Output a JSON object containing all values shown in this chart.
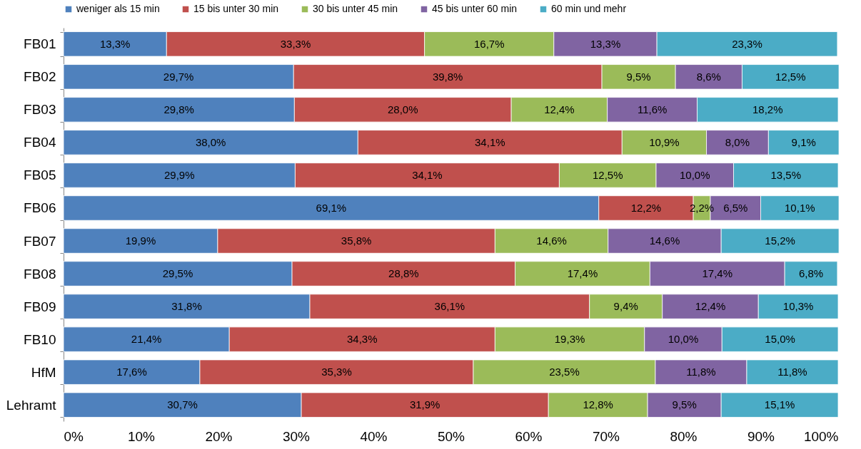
{
  "chart_data": {
    "type": "bar",
    "orientation": "horizontal",
    "stacked": true,
    "legend": "top",
    "grid": false,
    "categories": [
      "FB01",
      "FB02",
      "FB03",
      "FB04",
      "FB05",
      "FB06",
      "FB07",
      "FB08",
      "FB09",
      "FB10",
      "HfM",
      "Lehramt"
    ],
    "xlim": [
      0,
      100
    ],
    "xticks": [
      {
        "value": 0,
        "label": "0%"
      },
      {
        "value": 10,
        "label": "10%"
      },
      {
        "value": 20,
        "label": "20%"
      },
      {
        "value": 30,
        "label": "30%"
      },
      {
        "value": 40,
        "label": "40%"
      },
      {
        "value": 50,
        "label": "50%"
      },
      {
        "value": 60,
        "label": "60%"
      },
      {
        "value": 70,
        "label": "70%"
      },
      {
        "value": 80,
        "label": "80%"
      },
      {
        "value": 90,
        "label": "90%"
      },
      {
        "value": 100,
        "label": "100%"
      }
    ],
    "series": [
      {
        "name": "weniger als 15 min",
        "color": "#4f81bd",
        "values": [
          13.3,
          29.7,
          29.8,
          38.0,
          29.9,
          69.1,
          19.9,
          29.5,
          31.8,
          21.4,
          17.6,
          30.7
        ],
        "value_labels": [
          "13,3%",
          "29,7%",
          "29,8%",
          "38,0%",
          "29,9%",
          "69,1%",
          "19,9%",
          "29,5%",
          "31,8%",
          "21,4%",
          "17,6%",
          "30,7%"
        ]
      },
      {
        "name": "15 bis unter 30 min",
        "color": "#c0504d",
        "values": [
          33.3,
          39.8,
          28.0,
          34.1,
          34.1,
          12.2,
          35.8,
          28.8,
          36.1,
          34.3,
          35.3,
          31.9
        ],
        "value_labels": [
          "33,3%",
          "39,8%",
          "28,0%",
          "34,1%",
          "34,1%",
          "12,2%",
          "35,8%",
          "28,8%",
          "36,1%",
          "34,3%",
          "35,3%",
          "31,9%"
        ]
      },
      {
        "name": "30 bis unter 45 min",
        "color": "#9bbb59",
        "values": [
          16.7,
          9.5,
          12.4,
          10.9,
          12.5,
          2.2,
          14.6,
          17.4,
          9.4,
          19.3,
          23.5,
          12.8
        ],
        "value_labels": [
          "16,7%",
          "9,5%",
          "12,4%",
          "10,9%",
          "12,5%",
          "2,2%",
          "14,6%",
          "17,4%",
          "9,4%",
          "19,3%",
          "23,5%",
          "12,8%"
        ]
      },
      {
        "name": "45 bis unter 60 min",
        "color": "#8064a2",
        "values": [
          13.3,
          8.6,
          11.6,
          8.0,
          10.0,
          6.5,
          14.6,
          17.4,
          12.4,
          10.0,
          11.8,
          9.5
        ],
        "value_labels": [
          "13,3%",
          "8,6%",
          "11,6%",
          "8,0%",
          "10,0%",
          "6,5%",
          "14,6%",
          "17,4%",
          "12,4%",
          "10,0%",
          "11,8%",
          "9,5%"
        ]
      },
      {
        "name": "60 min und mehr",
        "color": "#4bacc6",
        "values": [
          23.3,
          12.5,
          18.2,
          9.1,
          13.5,
          10.1,
          15.2,
          6.8,
          10.3,
          15.0,
          11.8,
          15.1
        ],
        "value_labels": [
          "23,3%",
          "12,5%",
          "18,2%",
          "9,1%",
          "13,5%",
          "10,1%",
          "15,2%",
          "6,8%",
          "10,3%",
          "15,0%",
          "11,8%",
          "15,1%"
        ]
      }
    ]
  }
}
